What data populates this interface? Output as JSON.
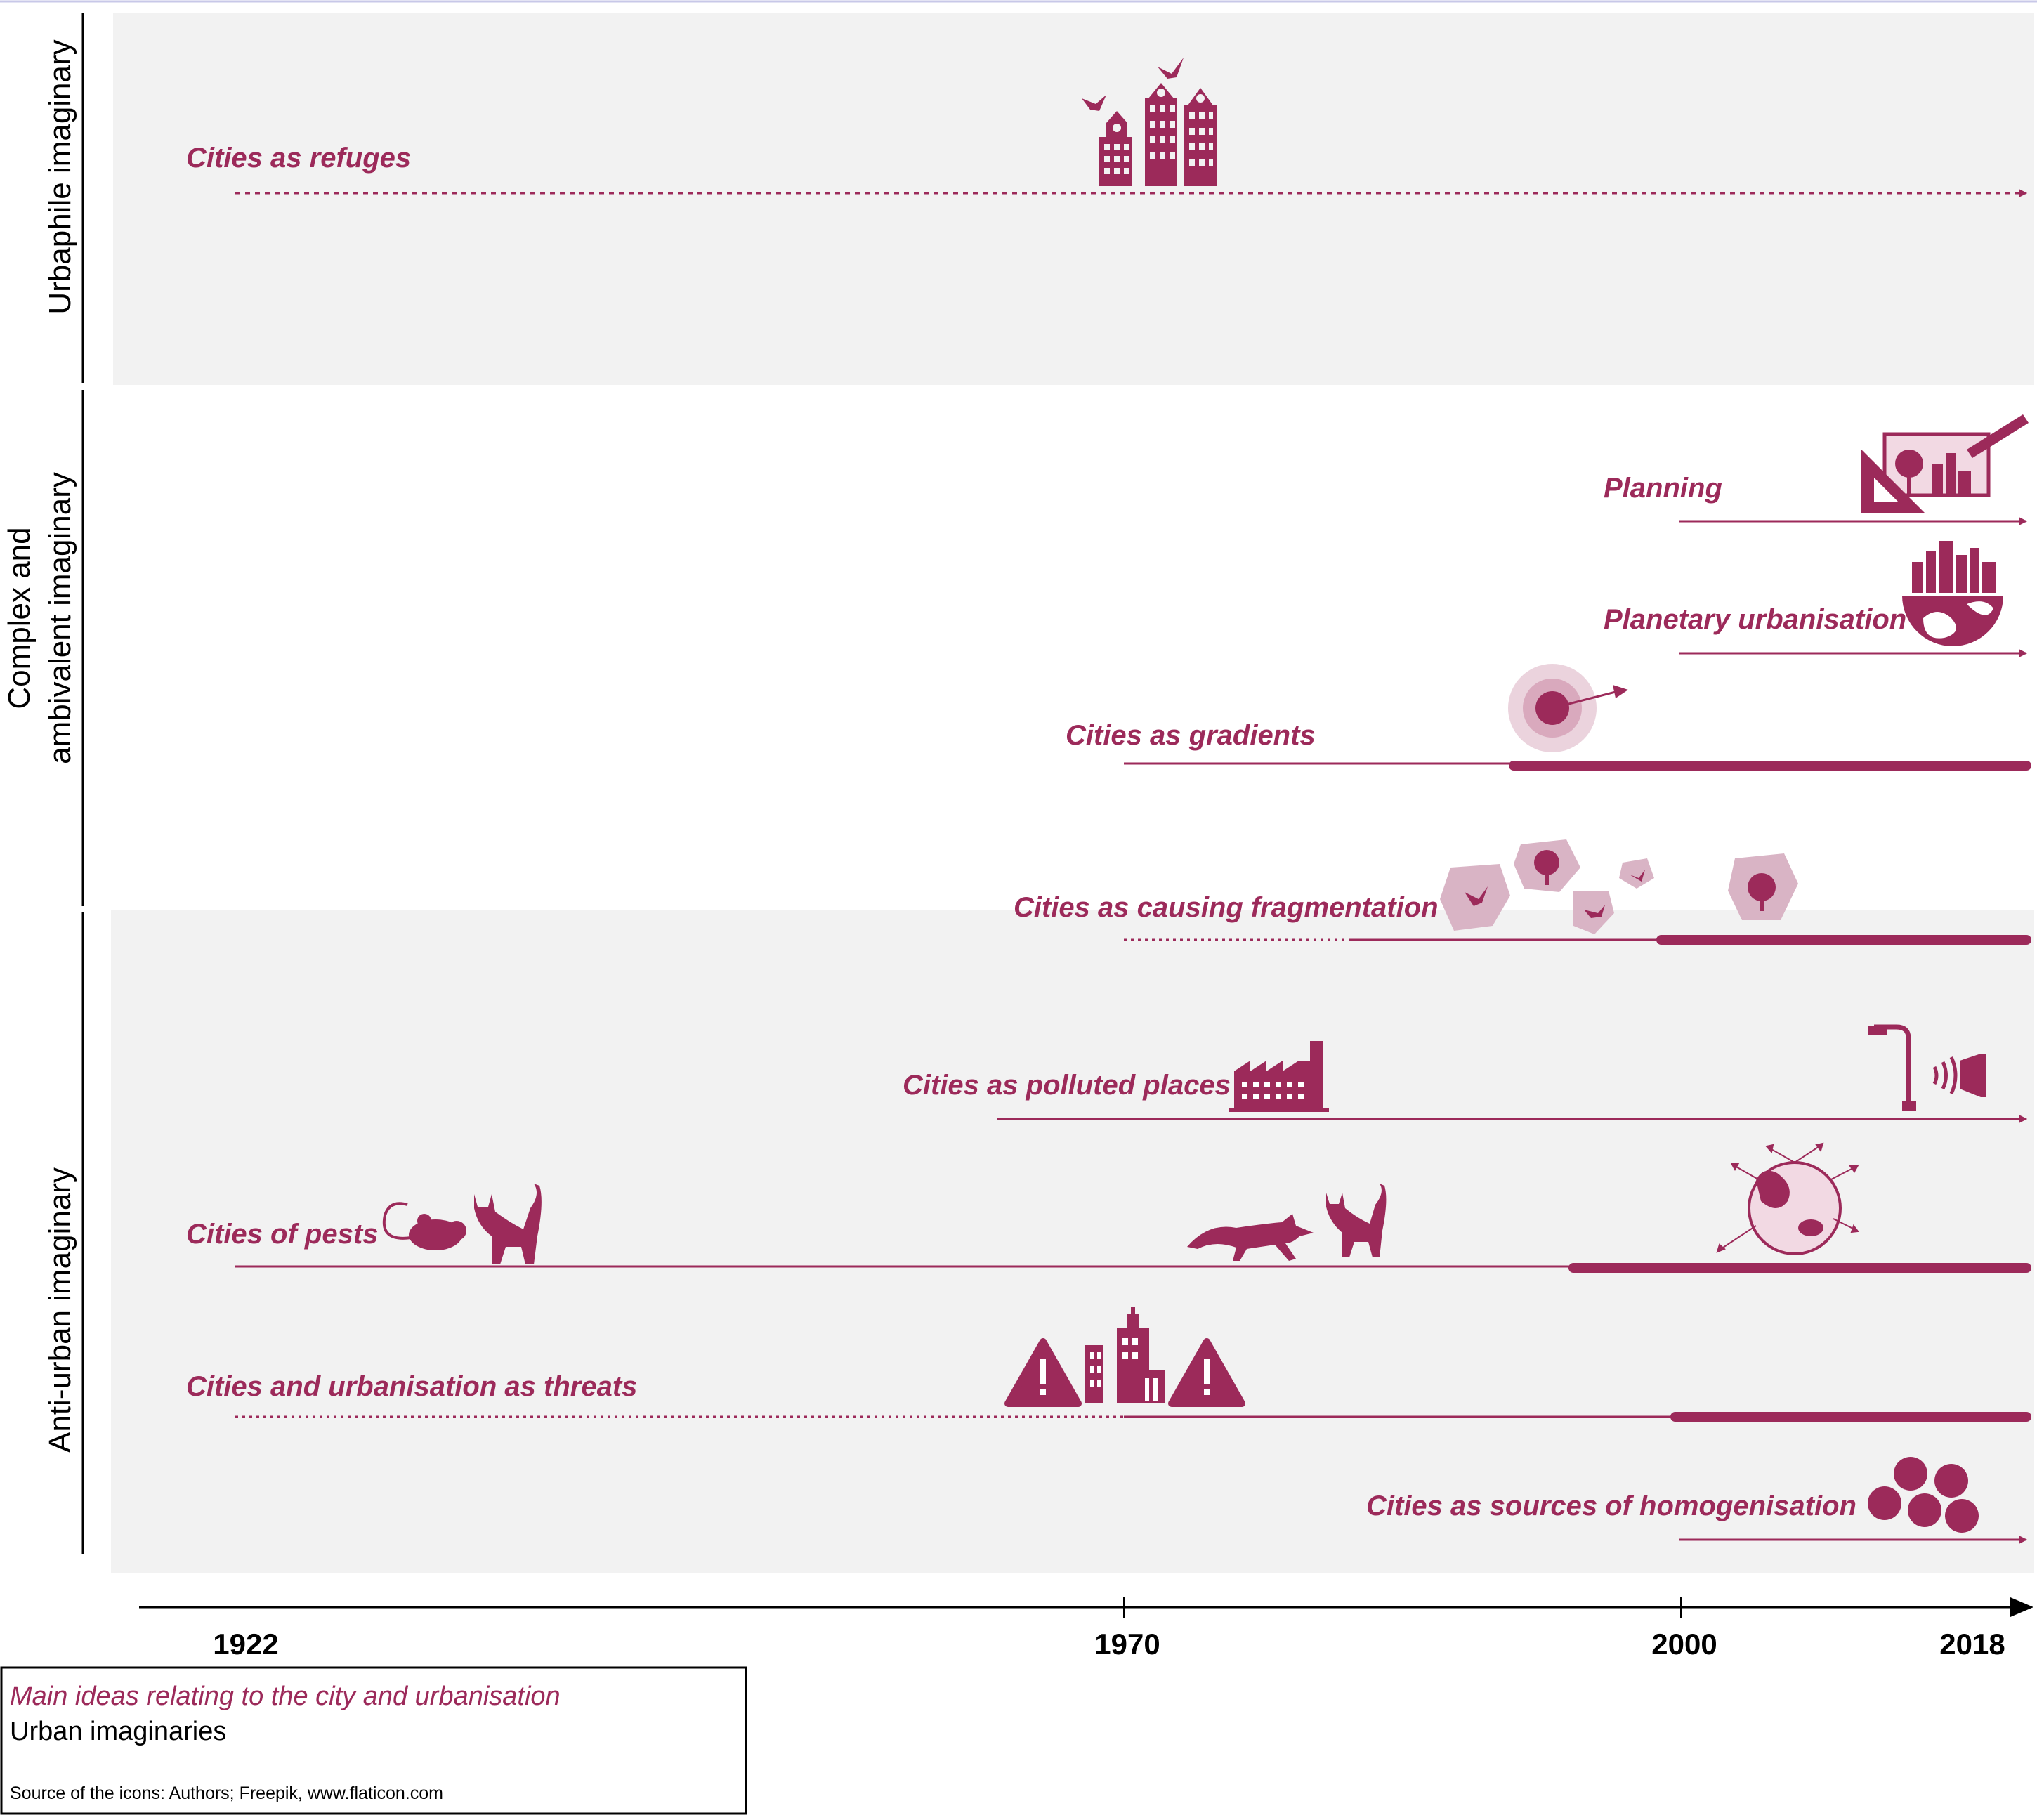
{
  "colors": {
    "accent": "#9c2a5a",
    "accent_light": "#d9b4c5",
    "band": "#f2f2f2",
    "axis": "#000000"
  },
  "sections": {
    "urbaphile": "Urbaphile imaginary",
    "complex_line1": "Complex and",
    "complex_line2": "ambivalent imaginary",
    "anti_urban": "Anti-urban imaginary"
  },
  "ideas": {
    "refuges": "Cities as refuges",
    "planning": "Planning",
    "planetary": "Planetary urbanisation",
    "gradients": "Cities as gradients",
    "fragmentation": "Cities as causing fragmentation",
    "polluted": "Cities as polluted places",
    "pests": "Cities of pests",
    "threats": "Cities and urbanisation as threats",
    "homogenisation": "Cities as sources of homogenisation"
  },
  "axis": {
    "ticks": [
      "1922",
      "1970",
      "2000",
      "2018"
    ]
  },
  "legend": {
    "ideas_label": "Main ideas relating to the city and urbanisation",
    "imaginaries_label": "Urban imaginaries",
    "source": "Source of the icons: Authors; Freepik, www.flaticon.com"
  },
  "icons": [
    "bird-house-buildings-icon",
    "planning-board-icon",
    "globe-city-icon",
    "gradient-target-icon",
    "habitat-patches-icon",
    "factory-icon",
    "streetlight-icon",
    "speaker-noise-icon",
    "rat-icon",
    "cat-icon",
    "fox-icon",
    "invasive-species-globe-icon",
    "warning-icon",
    "city-skyline-icon",
    "homogenisation-dots-icon"
  ]
}
